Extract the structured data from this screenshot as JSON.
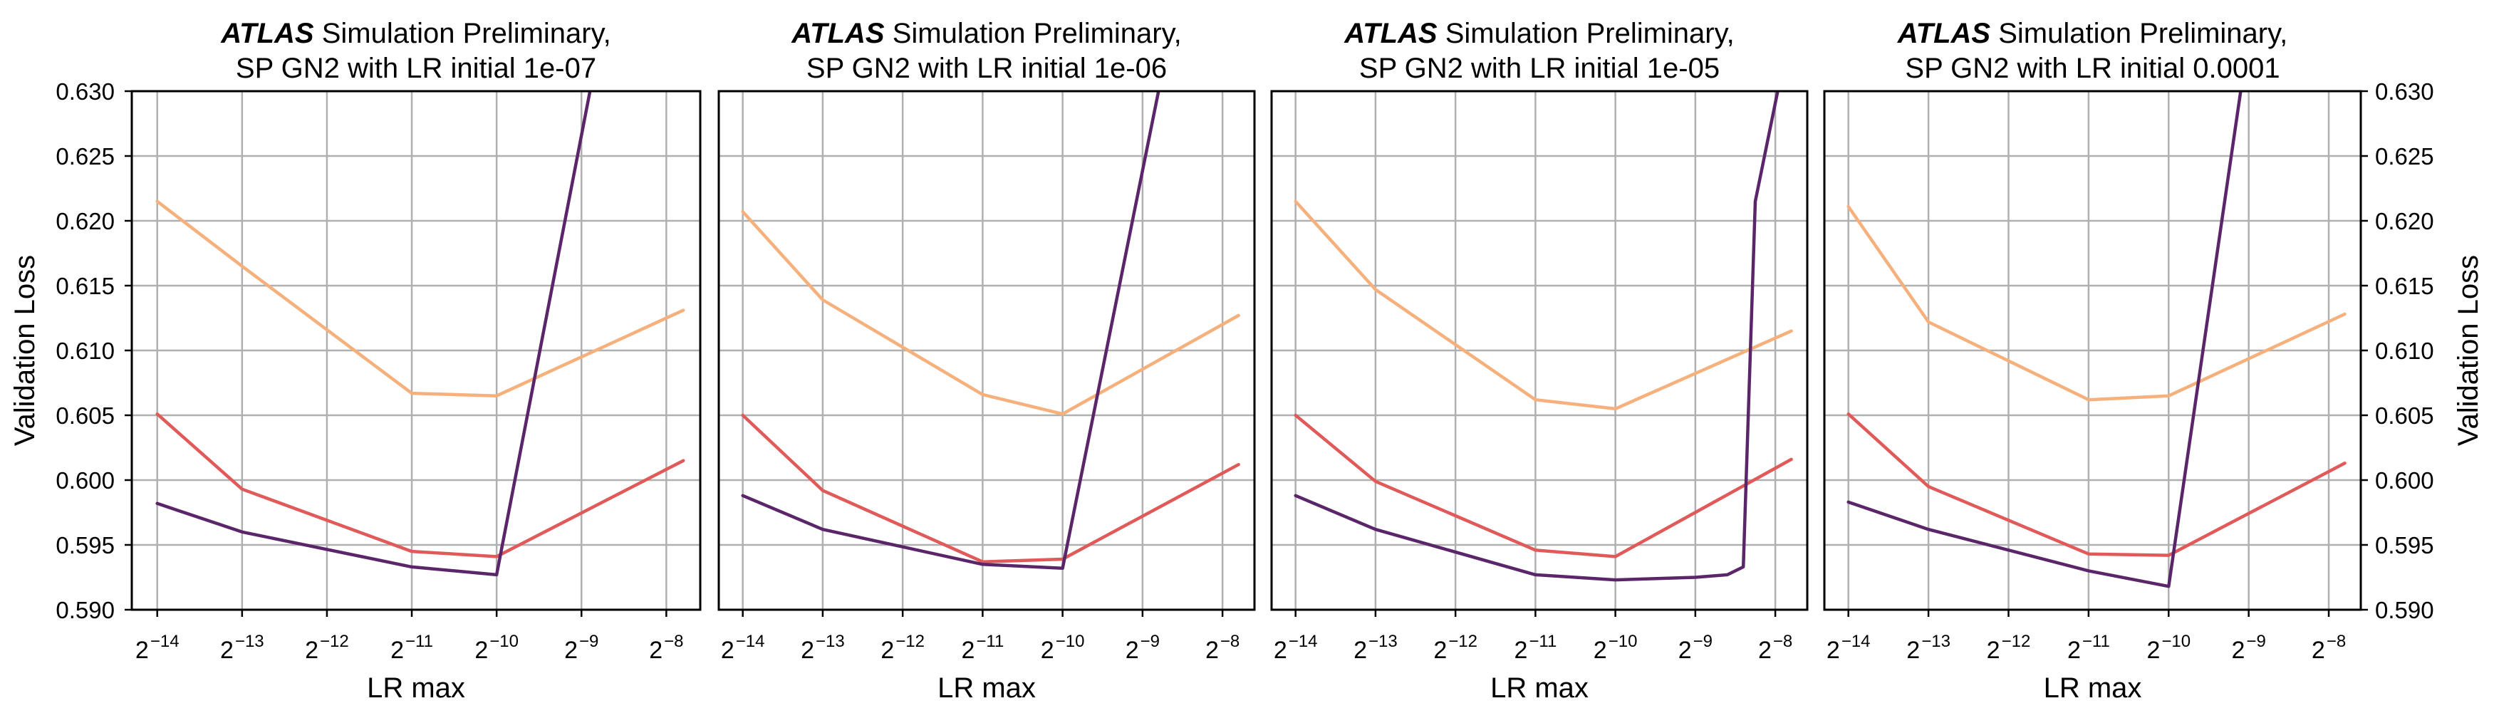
{
  "chart_data": [
    {
      "type": "line",
      "title_bold": "ATLAS",
      "title_rest": "Simulation Preliminary,",
      "subtitle": "SP GN2 with LR initial 1e-07",
      "xlabel": "LR max",
      "ylabel": "Validation Loss",
      "x_scale": "log2",
      "xlim": [
        -14.3,
        -7.6
      ],
      "ylim": [
        0.59,
        0.63
      ],
      "x_ticks": [
        -14,
        -13,
        -12,
        -11,
        -10,
        -9,
        -8
      ],
      "y_ticks": [
        0.59,
        0.595,
        0.6,
        0.605,
        0.61,
        0.615,
        0.62,
        0.625,
        0.63
      ],
      "grid": true,
      "series": [
        {
          "color": "#f6b07c",
          "x": [
            -14,
            -13,
            -11,
            -10,
            -7.8
          ],
          "y": [
            0.6215,
            0.6165,
            0.6067,
            0.6065,
            0.6131
          ]
        },
        {
          "color": "#e05a5a",
          "x": [
            -14,
            -13,
            -11,
            -10,
            -7.8
          ],
          "y": [
            0.6051,
            0.5993,
            0.5945,
            0.5941,
            0.6015
          ]
        },
        {
          "color": "#5a2669",
          "x": [
            -14,
            -13,
            -11,
            -10,
            -8.9
          ],
          "y": [
            0.5982,
            0.596,
            0.5933,
            0.5927,
            0.63
          ]
        }
      ]
    },
    {
      "type": "line",
      "title_bold": "ATLAS",
      "title_rest": "Simulation Preliminary,",
      "subtitle": "SP GN2 with LR initial 1e-06",
      "xlabel": "LR max",
      "ylabel": "",
      "x_scale": "log2",
      "xlim": [
        -14.3,
        -7.6
      ],
      "ylim": [
        0.59,
        0.63
      ],
      "x_ticks": [
        -14,
        -13,
        -12,
        -11,
        -10,
        -9,
        -8
      ],
      "y_ticks": [],
      "grid": true,
      "series": [
        {
          "color": "#f6b07c",
          "x": [
            -14,
            -13,
            -11,
            -10,
            -7.8
          ],
          "y": [
            0.6207,
            0.6139,
            0.6066,
            0.6051,
            0.6127
          ]
        },
        {
          "color": "#e05a5a",
          "x": [
            -14,
            -13,
            -11,
            -10,
            -7.8
          ],
          "y": [
            0.605,
            0.5992,
            0.5937,
            0.5939,
            0.6012
          ]
        },
        {
          "color": "#5a2669",
          "x": [
            -14,
            -13,
            -11,
            -10,
            -8.8
          ],
          "y": [
            0.5988,
            0.5962,
            0.5935,
            0.5932,
            0.63
          ]
        }
      ]
    },
    {
      "type": "line",
      "title_bold": "ATLAS",
      "title_rest": "Simulation Preliminary,",
      "subtitle": "SP GN2 with LR initial 1e-05",
      "xlabel": "LR max",
      "ylabel": "",
      "x_scale": "log2",
      "xlim": [
        -14.3,
        -7.6
      ],
      "ylim": [
        0.59,
        0.63
      ],
      "x_ticks": [
        -14,
        -13,
        -12,
        -11,
        -10,
        -9,
        -8
      ],
      "y_ticks": [],
      "grid": true,
      "series": [
        {
          "color": "#f6b07c",
          "x": [
            -14,
            -13,
            -11,
            -10,
            -7.8
          ],
          "y": [
            0.6215,
            0.6147,
            0.6062,
            0.6055,
            0.6115
          ]
        },
        {
          "color": "#e05a5a",
          "x": [
            -14,
            -13,
            -11,
            -10,
            -7.8
          ],
          "y": [
            0.605,
            0.5999,
            0.5946,
            0.5941,
            0.6016
          ]
        },
        {
          "color": "#5a2669",
          "x": [
            -14,
            -13,
            -11,
            -10,
            -9,
            -8.6,
            -8.4,
            -8.25,
            -7.97
          ],
          "y": [
            0.5988,
            0.5962,
            0.5927,
            0.5923,
            0.5925,
            0.5927,
            0.5933,
            0.6215,
            0.63
          ]
        }
      ]
    },
    {
      "type": "line",
      "title_bold": "ATLAS",
      "title_rest": "Simulation Preliminary,",
      "subtitle": "SP GN2 with LR initial 0.0001",
      "xlabel": "LR max",
      "ylabel": "Validation Loss",
      "x_scale": "log2",
      "xlim": [
        -14.3,
        -7.6
      ],
      "ylim": [
        0.59,
        0.63
      ],
      "x_ticks": [
        -14,
        -13,
        -12,
        -11,
        -10,
        -9,
        -8
      ],
      "y_ticks": [
        0.59,
        0.595,
        0.6,
        0.605,
        0.61,
        0.615,
        0.62,
        0.625,
        0.63
      ],
      "grid": true,
      "series": [
        {
          "color": "#f6b07c",
          "x": [
            -14,
            -13,
            -11,
            -10,
            -7.8
          ],
          "y": [
            0.6211,
            0.6122,
            0.6062,
            0.6065,
            0.6128
          ]
        },
        {
          "color": "#e05a5a",
          "x": [
            -14,
            -13,
            -11,
            -10,
            -7.8
          ],
          "y": [
            0.6051,
            0.5995,
            0.5943,
            0.5942,
            0.6013
          ]
        },
        {
          "color": "#5a2669",
          "x": [
            -14,
            -13,
            -11,
            -10,
            -9.1
          ],
          "y": [
            0.5983,
            0.5962,
            0.593,
            0.5918,
            0.63
          ]
        }
      ]
    }
  ]
}
